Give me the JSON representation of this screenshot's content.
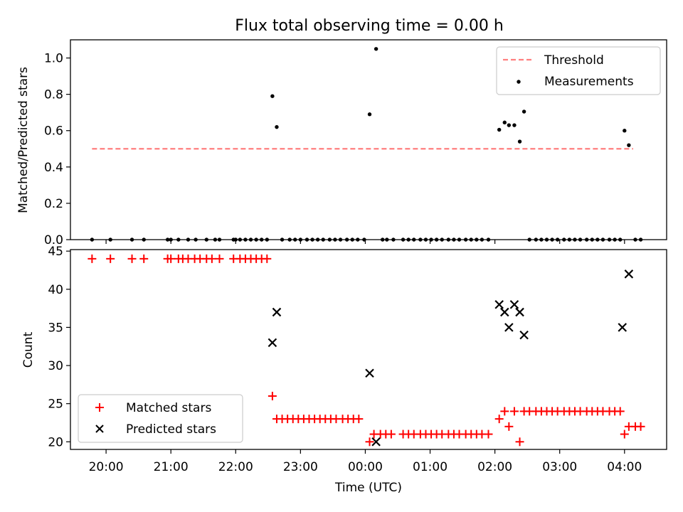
{
  "figure": {
    "title": "Flux total observing time = 0.00 h"
  },
  "chart_data": [
    {
      "type": "scatter",
      "name": "ratio-panel",
      "ylabel": "Matched/Predicted stars",
      "ylim": [
        0,
        1.1
      ],
      "yticks": [
        "0.0",
        "0.2",
        "0.4",
        "0.6",
        "0.8",
        "1.0"
      ],
      "legend": {
        "placement": "upper right",
        "entries": [
          "Threshold",
          "Measurements"
        ]
      },
      "threshold": {
        "name": "Threshold",
        "value": 0.5,
        "x_start": "19:47",
        "x_end": "04:08",
        "color": "#ff7f7f"
      },
      "series": [
        {
          "name": "Measurements",
          "color": "#000000",
          "x": [
            "19:47",
            "20:04",
            "20:24",
            "20:35",
            "20:57",
            "21:00",
            "21:07",
            "21:16",
            "21:23",
            "21:33",
            "21:41",
            "21:45",
            "21:58",
            "22:00",
            "22:04",
            "22:09",
            "22:14",
            "22:19",
            "22:24",
            "22:29",
            "22:34",
            "22:38",
            "22:43",
            "22:50",
            "22:55",
            "23:00",
            "23:06",
            "23:11",
            "23:16",
            "23:21",
            "23:27",
            "23:32",
            "23:37",
            "23:43",
            "23:48",
            "23:53",
            "23:59",
            "00:04",
            "00:10",
            "00:16",
            "00:20",
            "00:26",
            "00:35",
            "00:40",
            "00:45",
            "00:51",
            "00:56",
            "01:01",
            "01:06",
            "01:11",
            "01:17",
            "01:22",
            "01:27",
            "01:33",
            "01:38",
            "01:43",
            "01:48",
            "01:54",
            "02:04",
            "02:09",
            "02:13",
            "02:18",
            "02:23",
            "02:27",
            "02:32",
            "02:38",
            "02:43",
            "02:48",
            "02:53",
            "02:58",
            "03:04",
            "03:09",
            "03:14",
            "03:19",
            "03:25",
            "03:30",
            "03:35",
            "03:40",
            "03:46",
            "03:51",
            "03:56",
            "04:00",
            "04:04",
            "04:10",
            "04:15"
          ],
          "y": [
            0.0,
            0.0,
            0.0,
            0.0,
            0.0,
            0.0,
            0.0,
            0.0,
            0.0,
            0.0,
            0.0,
            0.0,
            0.0,
            0.0,
            0.0,
            0.0,
            0.0,
            0.0,
            0.0,
            0.0,
            0.79,
            0.62,
            0.0,
            0.0,
            0.0,
            0.0,
            0.0,
            0.0,
            0.0,
            0.0,
            0.0,
            0.0,
            0.0,
            0.0,
            0.0,
            0.0,
            0.0,
            0.69,
            1.05,
            0.0,
            0.0,
            0.0,
            0.0,
            0.0,
            0.0,
            0.0,
            0.0,
            0.0,
            0.0,
            0.0,
            0.0,
            0.0,
            0.0,
            0.0,
            0.0,
            0.0,
            0.0,
            0.0,
            0.605,
            0.645,
            0.63,
            0.63,
            0.54,
            0.705,
            0.0,
            0.0,
            0.0,
            0.0,
            0.0,
            0.0,
            0.0,
            0.0,
            0.0,
            0.0,
            0.0,
            0.0,
            0.0,
            0.0,
            0.0,
            0.0,
            0.0,
            0.6,
            0.52,
            0.0,
            0.0
          ]
        }
      ]
    },
    {
      "type": "scatter",
      "name": "count-panel",
      "ylabel": "Count",
      "xlabel": "Time (UTC)",
      "ylim": [
        19,
        45.2
      ],
      "yticks": [
        "20",
        "25",
        "30",
        "35",
        "40",
        "45"
      ],
      "xticks": [
        "20:00",
        "21:00",
        "22:00",
        "23:00",
        "00:00",
        "01:00",
        "02:00",
        "03:00",
        "04:00"
      ],
      "legend": {
        "placement": "lower left",
        "entries": [
          "Matched stars",
          "Predicted stars"
        ]
      },
      "series": [
        {
          "name": "Matched stars",
          "marker": "+",
          "color": "#ff0000",
          "x": [
            "19:47",
            "20:04",
            "20:24",
            "20:35",
            "20:57",
            "21:00",
            "21:07",
            "21:11",
            "21:16",
            "21:22",
            "21:27",
            "21:33",
            "21:38",
            "21:45",
            "21:58",
            "22:04",
            "22:09",
            "22:14",
            "22:19",
            "22:24",
            "22:29",
            "22:34",
            "22:38",
            "22:43",
            "22:48",
            "22:53",
            "22:58",
            "23:03",
            "23:08",
            "23:13",
            "23:18",
            "23:23",
            "23:28",
            "23:33",
            "23:39",
            "23:44",
            "23:49",
            "23:54",
            "00:04",
            "00:08",
            "00:14",
            "00:19",
            "00:24",
            "00:35",
            "00:40",
            "00:45",
            "00:51",
            "00:56",
            "01:01",
            "01:06",
            "01:11",
            "01:17",
            "01:22",
            "01:27",
            "01:33",
            "01:38",
            "01:43",
            "01:48",
            "01:54",
            "02:04",
            "02:09",
            "02:13",
            "02:18",
            "02:23",
            "02:27",
            "02:32",
            "02:38",
            "02:43",
            "02:48",
            "02:53",
            "02:58",
            "03:04",
            "03:09",
            "03:14",
            "03:19",
            "03:25",
            "03:30",
            "03:35",
            "03:40",
            "03:46",
            "03:51",
            "03:56",
            "04:00",
            "04:04",
            "04:10",
            "04:15"
          ],
          "y": [
            44,
            44,
            44,
            44,
            44,
            44,
            44,
            44,
            44,
            44,
            44,
            44,
            44,
            44,
            44,
            44,
            44,
            44,
            44,
            44,
            44,
            26,
            23,
            23,
            23,
            23,
            23,
            23,
            23,
            23,
            23,
            23,
            23,
            23,
            23,
            23,
            23,
            23,
            20,
            21,
            21,
            21,
            21,
            21,
            21,
            21,
            21,
            21,
            21,
            21,
            21,
            21,
            21,
            21,
            21,
            21,
            21,
            21,
            21,
            23,
            24,
            22,
            24,
            20,
            24,
            24,
            24,
            24,
            24,
            24,
            24,
            24,
            24,
            24,
            24,
            24,
            24,
            24,
            24,
            24,
            24,
            24,
            21,
            22,
            22,
            22
          ]
        },
        {
          "name": "Predicted stars",
          "marker": "x",
          "color": "#000000",
          "x": [
            "22:34",
            "22:38",
            "00:04",
            "00:10",
            "02:04",
            "02:09",
            "02:13",
            "02:18",
            "02:23",
            "02:27",
            "03:58",
            "04:04"
          ],
          "y": [
            33,
            37,
            29,
            20,
            38,
            37,
            35,
            38,
            37,
            34,
            35,
            42
          ]
        }
      ]
    }
  ]
}
